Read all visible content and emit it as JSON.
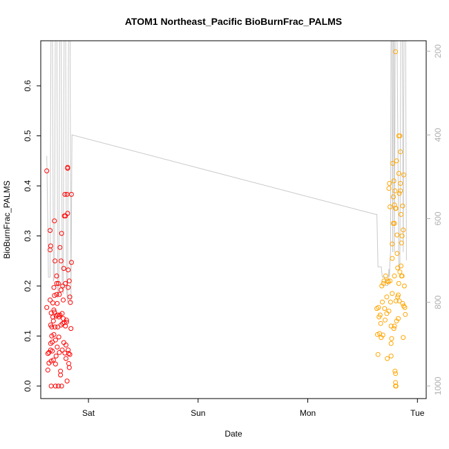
{
  "chart_data": {
    "type": "scatter",
    "title": "ATOM1 Northeast_Pacific BioBurnFrac_PALMS",
    "xlabel": "Date",
    "ylabel": "BioBurnFrac_PALMS",
    "ylim": [
      -0.025,
      0.69
    ],
    "x_ticks": [
      {
        "label": "Sat",
        "x": 0
      },
      {
        "label": "Sun",
        "x": 1
      },
      {
        "label": "Mon",
        "x": 2
      },
      {
        "label": "Tue",
        "x": 3
      }
    ],
    "xlim": [
      -0.435,
      3.08
    ],
    "y_ticks": [
      0.0,
      0.1,
      0.2,
      0.3,
      0.4,
      0.5,
      0.6
    ],
    "y2_label": "",
    "y2_ticks": [
      200,
      400,
      600,
      800,
      1000
    ],
    "y2lim": [
      1030,
      175
    ],
    "y2_reversed": true,
    "grid": false,
    "series": [
      {
        "color": "#ff0000",
        "marker": "open-circle",
        "points": [
          [
            -0.38,
            0.43
          ],
          [
            -0.38,
            0.157
          ],
          [
            -0.37,
            0.065
          ],
          [
            -0.37,
            0.032
          ],
          [
            -0.36,
            0.046
          ],
          [
            -0.36,
            0.067
          ],
          [
            -0.35,
            0.311
          ],
          [
            -0.35,
            0.272
          ],
          [
            -0.35,
            0.172
          ],
          [
            -0.345,
            0.28
          ],
          [
            -0.345,
            0.122
          ],
          [
            -0.345,
            0.085
          ],
          [
            -0.345,
            0.072
          ],
          [
            -0.34,
            0.0
          ],
          [
            -0.34,
            0.05
          ],
          [
            -0.34,
            0.146
          ],
          [
            -0.335,
            0.118
          ],
          [
            -0.335,
            0.1
          ],
          [
            -0.33,
            0.088
          ],
          [
            -0.33,
            0.07
          ],
          [
            -0.325,
            0.166
          ],
          [
            -0.325,
            0.138
          ],
          [
            -0.32,
            0.052
          ],
          [
            -0.32,
            0.13
          ],
          [
            -0.315,
            0.197
          ],
          [
            -0.315,
            0.152
          ],
          [
            -0.315,
            0.103
          ],
          [
            -0.31,
            0.33
          ],
          [
            -0.31,
            0.181
          ],
          [
            -0.31,
            0.148
          ],
          [
            -0.305,
            0.25
          ],
          [
            -0.305,
            0.118
          ],
          [
            -0.3,
            0.092
          ],
          [
            -0.3,
            0.0
          ],
          [
            -0.3,
            0.044
          ],
          [
            -0.295,
            0.06
          ],
          [
            -0.295,
            0.14
          ],
          [
            -0.29,
            0.205
          ],
          [
            -0.29,
            0.22
          ],
          [
            -0.29,
            0.183
          ],
          [
            -0.285,
            0.165
          ],
          [
            -0.285,
            0.078
          ],
          [
            -0.28,
            0.142
          ],
          [
            -0.28,
            0.118
          ],
          [
            -0.275,
            0.0
          ],
          [
            -0.275,
            0.205
          ],
          [
            -0.27,
            0.138
          ],
          [
            -0.27,
            0.098
          ],
          [
            -0.265,
            0.183
          ],
          [
            -0.265,
            0.067
          ],
          [
            -0.26,
            0.277
          ],
          [
            -0.26,
            0.142
          ],
          [
            -0.255,
            0.03
          ],
          [
            -0.255,
            0.022
          ],
          [
            -0.25,
            0.25
          ],
          [
            -0.25,
            0.192
          ],
          [
            -0.25,
            0.122
          ],
          [
            -0.245,
            0.0
          ],
          [
            -0.245,
            0.305
          ],
          [
            -0.24,
            0.145
          ],
          [
            -0.24,
            0.072
          ],
          [
            -0.235,
            0.2
          ],
          [
            -0.235,
            0.125
          ],
          [
            -0.23,
            0.172
          ],
          [
            -0.23,
            0.135
          ],
          [
            -0.225,
            0.235
          ],
          [
            -0.225,
            0.087
          ],
          [
            -0.22,
            0.34
          ],
          [
            -0.22,
            0.127
          ],
          [
            -0.215,
            0.383
          ],
          [
            -0.215,
            0.066
          ],
          [
            -0.21,
            0.34
          ],
          [
            -0.21,
            0.205
          ],
          [
            -0.21,
            0.12
          ],
          [
            -0.205,
            0.082
          ],
          [
            -0.205,
            0.055
          ],
          [
            -0.2,
            0.132
          ],
          [
            -0.2,
            0.128
          ],
          [
            -0.195,
            0.01
          ],
          [
            -0.195,
            0.383
          ],
          [
            -0.19,
            0.345
          ],
          [
            -0.19,
            0.437
          ],
          [
            -0.19,
            0.435
          ],
          [
            -0.185,
            0.232
          ],
          [
            -0.185,
            0.197
          ],
          [
            -0.185,
            0.072
          ],
          [
            -0.18,
            0.045
          ],
          [
            -0.18,
            0.065
          ],
          [
            -0.175,
            0.037
          ],
          [
            -0.175,
            0.21
          ],
          [
            -0.17,
            0.178
          ],
          [
            -0.17,
            0.063
          ],
          [
            -0.165,
            0.167
          ],
          [
            -0.16,
            0.115
          ],
          [
            -0.155,
            0.383
          ],
          [
            -0.155,
            0.247
          ]
        ]
      },
      {
        "color": "#ffa500",
        "marker": "open-circle",
        "points": [
          [
            2.63,
            0.155
          ],
          [
            2.635,
            0.103
          ],
          [
            2.64,
            0.063
          ],
          [
            2.645,
            0.157
          ],
          [
            2.65,
            0.138
          ],
          [
            2.655,
            0.105
          ],
          [
            2.66,
            0.142
          ],
          [
            2.665,
            0.125
          ],
          [
            2.67,
            0.097
          ],
          [
            2.675,
            0.2
          ],
          [
            2.68,
            0.168
          ],
          [
            2.685,
            0.102
          ],
          [
            2.69,
            0.205
          ],
          [
            2.695,
            0.21
          ],
          [
            2.7,
            0.155
          ],
          [
            2.705,
            0.132
          ],
          [
            2.71,
            0.22
          ],
          [
            2.72,
            0.178
          ],
          [
            2.72,
            0.145
          ],
          [
            2.725,
            0.055
          ],
          [
            2.73,
            0.21
          ],
          [
            2.735,
            0.208
          ],
          [
            2.74,
            0.395
          ],
          [
            2.745,
            0.405
          ],
          [
            2.75,
            0.358
          ],
          [
            2.755,
            0.168
          ],
          [
            2.76,
            0.06
          ],
          [
            2.765,
            0.095
          ],
          [
            2.77,
            0.284
          ],
          [
            2.775,
            0.445
          ],
          [
            2.78,
            0.378
          ],
          [
            2.785,
            0.41
          ],
          [
            2.79,
            0.362
          ],
          [
            2.79,
            0.325
          ],
          [
            2.795,
            0.03
          ],
          [
            2.8,
            0.668
          ],
          [
            2.8,
            0.025
          ],
          [
            2.8,
            0.007
          ],
          [
            2.8,
            0.0
          ],
          [
            2.805,
            0.0
          ],
          [
            2.805,
            0.355
          ],
          [
            2.81,
            0.45
          ],
          [
            2.815,
            0.302
          ],
          [
            2.82,
            0.236
          ],
          [
            2.825,
            0.182
          ],
          [
            2.83,
            0.425
          ],
          [
            2.83,
            0.5
          ],
          [
            2.835,
            0.17
          ],
          [
            2.84,
            0.5
          ],
          [
            2.845,
            0.468
          ],
          [
            2.85,
            0.343
          ],
          [
            2.855,
            0.286
          ],
          [
            2.86,
            0.22
          ],
          [
            2.865,
            0.165
          ],
          [
            2.87,
            0.312
          ],
          [
            2.87,
            0.097
          ],
          [
            2.875,
            0.422
          ],
          [
            2.88,
            0.2
          ],
          [
            2.885,
            0.157
          ],
          [
            2.89,
            0.143
          ],
          [
            2.76,
            0.12
          ],
          [
            2.74,
            0.15
          ],
          [
            2.77,
            0.255
          ],
          [
            2.78,
            0.325
          ],
          [
            2.79,
            0.22
          ],
          [
            2.81,
            0.13
          ],
          [
            2.82,
            0.178
          ],
          [
            2.83,
            0.205
          ],
          [
            2.845,
            0.39
          ],
          [
            2.85,
            0.24
          ],
          [
            2.86,
            0.3
          ],
          [
            2.865,
            0.36
          ],
          [
            2.84,
            0.228
          ],
          [
            2.855,
            0.22
          ],
          [
            2.875,
            0.16
          ],
          [
            2.8,
            0.355
          ],
          [
            2.785,
            0.115
          ],
          [
            2.77,
            0.185
          ],
          [
            2.76,
            0.085
          ],
          [
            2.75,
            0.21
          ],
          [
            2.795,
            0.39
          ],
          [
            2.815,
            0.265
          ],
          [
            2.825,
            0.135
          ],
          [
            2.835,
            0.385
          ],
          [
            2.845,
            0.405
          ],
          [
            2.805,
            0.17
          ],
          [
            2.79,
            0.12
          ]
        ]
      }
    ],
    "altitude_line": {
      "color": "#c8c8c8",
      "units_axis": "right",
      "points": [
        [
          -0.38,
          450
        ],
        [
          -0.37,
          620
        ],
        [
          -0.365,
          740
        ],
        [
          -0.35,
          740
        ],
        [
          -0.34,
          0
        ],
        [
          -0.33,
          0
        ],
        [
          -0.32,
          750
        ],
        [
          -0.31,
          740
        ],
        [
          -0.3,
          0
        ],
        [
          -0.29,
          0
        ],
        [
          -0.28,
          790
        ],
        [
          -0.27,
          770
        ],
        [
          -0.26,
          0
        ],
        [
          -0.25,
          0
        ],
        [
          -0.24,
          760
        ],
        [
          -0.23,
          780
        ],
        [
          -0.22,
          0
        ],
        [
          -0.21,
          0
        ],
        [
          -0.2,
          770
        ],
        [
          -0.19,
          800
        ],
        [
          -0.18,
          0
        ],
        [
          -0.17,
          0
        ],
        [
          -0.16,
          800
        ],
        [
          -0.15,
          400
        ],
        [
          2.62,
          590
        ],
        [
          2.63,
          590
        ],
        [
          2.64,
          715
        ],
        [
          2.67,
          715
        ],
        [
          2.68,
          740
        ],
        [
          2.7,
          740
        ],
        [
          2.71,
          760
        ],
        [
          2.73,
          760
        ],
        [
          2.74,
          720
        ],
        [
          2.745,
          740
        ],
        [
          2.75,
          700
        ],
        [
          2.755,
          680
        ],
        [
          2.76,
          0
        ],
        [
          2.765,
          0
        ],
        [
          2.775,
          680
        ],
        [
          2.78,
          0
        ],
        [
          2.785,
          0
        ],
        [
          2.79,
          680
        ],
        [
          2.8,
          0
        ],
        [
          2.81,
          0
        ],
        [
          2.83,
          720
        ],
        [
          2.84,
          720
        ],
        [
          2.85,
          0
        ],
        [
          2.86,
          0
        ],
        [
          2.87,
          680
        ],
        [
          2.88,
          0
        ],
        [
          2.89,
          0
        ],
        [
          2.9,
          700
        ]
      ]
    }
  }
}
